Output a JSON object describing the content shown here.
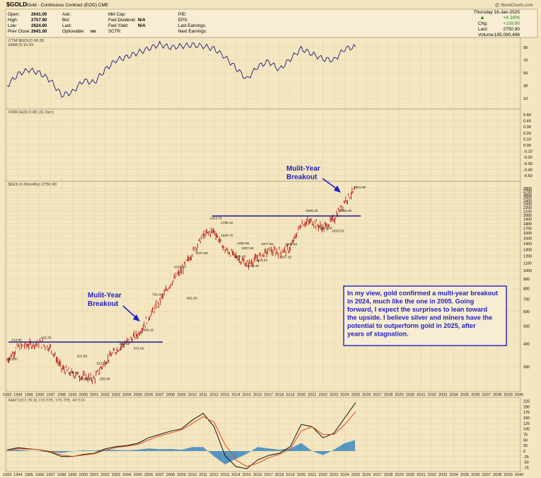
{
  "header": {
    "symbol": "$GOLD",
    "name": "Gold - Continuous Contract (EOD) CME",
    "watermark": "@ StockCharts.com",
    "fields_left": [
      {
        "label": "Open:",
        "value": "2641.00"
      },
      {
        "label": "High:",
        "value": "2757.90"
      },
      {
        "label": "Low:",
        "value": "2624.60"
      },
      {
        "label": "Prev Close:",
        "value": "2641.00"
      }
    ],
    "fields_mid": [
      {
        "label": "Ask:",
        "value": ""
      },
      {
        "label": "Bid:",
        "value": ""
      },
      {
        "label": "Last:",
        "value": ""
      },
      {
        "label": "Optionable:",
        "value": "no"
      }
    ],
    "fields_mid2": [
      {
        "label": "Mkt Cap:",
        "value": ""
      },
      {
        "label": "Fwd Dividend:",
        "value": "N/A"
      },
      {
        "label": "Fwd Yield:",
        "value": "N/A"
      },
      {
        "label": "SCTR:",
        "value": ""
      }
    ],
    "fields_right": [
      {
        "label": "P/E:",
        "value": ""
      },
      {
        "label": "EPS:",
        "value": ""
      },
      {
        "label": "Last Earnings:",
        "value": ""
      },
      {
        "label": "Next Earnings:",
        "value": ""
      }
    ],
    "quote": {
      "date": "Thursday 16-Jan-2025",
      "pct": "+4.16%",
      "chg_label": "Chg:",
      "chg": "+109.90",
      "last_label": "Last:",
      "last": "2750.90",
      "vol_label": "Volume:",
      "vol": "185,090,496"
    }
  },
  "colors": {
    "background": "#f4e6c0",
    "price": "#b00000",
    "lines": "#1a1a7a",
    "annotation": "#1e1ec8",
    "macd_signal": "#e04a1a",
    "histogram": "#4a8fc0"
  },
  "chart_data": [
    {
      "type": "line",
      "panel": "ctm",
      "legend": [
        "CTM-$GOLD 90.80",
        "EMA(3) 91.81"
      ],
      "yticks": [
        90,
        70,
        50,
        30,
        10
      ],
      "x": [
        1993,
        1994,
        1995,
        1996,
        1997,
        1998,
        1999,
        2000,
        2001,
        2002,
        2003,
        2004,
        2005,
        2006,
        2007,
        2008,
        2009,
        2010,
        2011,
        2012,
        2013,
        2014,
        2015,
        2016,
        2017,
        2018,
        2019,
        2020,
        2021,
        2022,
        2023,
        2024,
        2025
      ],
      "values": [
        30,
        48,
        55,
        50,
        38,
        15,
        20,
        38,
        35,
        55,
        70,
        75,
        82,
        88,
        95,
        90,
        92,
        94,
        92,
        88,
        75,
        58,
        40,
        60,
        68,
        55,
        72,
        88,
        80,
        72,
        70,
        88,
        91
      ]
    },
    {
      "type": "line",
      "panel": "force",
      "legend": [
        "FORCE(0) 0.00 (31 Dec)"
      ],
      "yticks": [
        "0.50",
        "0.40",
        "0.30",
        "0.20",
        "0.10",
        "0.00",
        "-0.10",
        "-0.20",
        "-0.30",
        "-0.40",
        "-0.50"
      ],
      "values": []
    },
    {
      "type": "line",
      "panel": "price",
      "title": "$GOLD (Monthly) 2750.90",
      "scale": "log",
      "x": [
        1993,
        1994,
        1995,
        1996,
        1997,
        1998,
        1999,
        2000,
        2001,
        2002,
        2003,
        2004,
        2005,
        2006,
        2007,
        2008,
        2009,
        2010,
        2011,
        2012,
        2013,
        2014,
        2015,
        2016,
        2017,
        2018,
        2019,
        2020,
        2021,
        2022,
        2023,
        2024,
        2025
      ],
      "values": [
        325.8,
        385,
        395,
        405,
        380,
        295,
        275,
        265,
        258,
        320,
        370,
        410,
        450,
        560,
        680,
        850,
        1000,
        1250,
        1550,
        1650,
        1300,
        1200,
        1080,
        1170,
        1280,
        1260,
        1320,
        1800,
        1850,
        1700,
        1900,
        2400,
        2750.9
      ],
      "yticks": [
        2800,
        2700,
        2600,
        2500,
        2400,
        2300,
        2200,
        2100,
        2000,
        1900,
        1800,
        1700,
        1600,
        1500,
        1400,
        1300,
        1200,
        1100,
        1000,
        900,
        800,
        700,
        600,
        500,
        400,
        300
      ],
      "price_labels": [
        {
          "x": 1993.0,
          "y": 325.8,
          "text": "325.80"
        },
        {
          "x": 1993.4,
          "y": 415,
          "text": "414.80"
        },
        {
          "x": 1996.1,
          "y": 425,
          "text": "433.70"
        },
        {
          "x": 1998.6,
          "y": 275,
          "text": "275.80"
        },
        {
          "x": 1999.4,
          "y": 338,
          "text": "337.50"
        },
        {
          "x": 1999.8,
          "y": 255,
          "text": "253.20"
        },
        {
          "x": 2001.2,
          "y": 310,
          "text": "313.50"
        },
        {
          "x": 2001.5,
          "y": 255,
          "text": "255.80"
        },
        {
          "x": 2003.3,
          "y": 395,
          "text": "394.50"
        },
        {
          "x": 2004.6,
          "y": 372,
          "text": "372.00"
        },
        {
          "x": 2005.5,
          "y": 470,
          "text": "489.20"
        },
        {
          "x": 2006.3,
          "y": 730,
          "text": "730.00"
        },
        {
          "x": 2008.3,
          "y": 1034,
          "text": "1033.90"
        },
        {
          "x": 2009.5,
          "y": 700,
          "text": "681.00"
        },
        {
          "x": 2010.3,
          "y": 1227,
          "text": "1227.50"
        },
        {
          "x": 2011.6,
          "y": 1900,
          "text": "1923.70"
        },
        {
          "x": 2012.6,
          "y": 1800,
          "text": "1798.10"
        },
        {
          "x": 2012.6,
          "y": 1530,
          "text": "1526.70"
        },
        {
          "x": 2014.1,
          "y": 1392,
          "text": "1392.60"
        },
        {
          "x": 2014.5,
          "y": 1307,
          "text": "1307.80"
        },
        {
          "x": 2013.8,
          "y": 1180,
          "text": "1181.40"
        },
        {
          "x": 2016.3,
          "y": 1377,
          "text": "1377.50"
        },
        {
          "x": 2015.8,
          "y": 1124,
          "text": "1124.20"
        },
        {
          "x": 2015.0,
          "y": 1045,
          "text": "1045.40"
        },
        {
          "x": 2018.5,
          "y": 1369,
          "text": "1369.40"
        },
        {
          "x": 2018.0,
          "y": 1167,
          "text": "1167.10"
        },
        {
          "x": 2020.4,
          "y": 2089,
          "text": "2089.20"
        },
        {
          "x": 2021.7,
          "y": 1680,
          "text": "1675.90"
        },
        {
          "x": 2023.5,
          "y": 2085,
          "text": "2085.40"
        },
        {
          "x": 2022.8,
          "y": 1623,
          "text": "1623.50"
        },
        {
          "x": 2024.8,
          "y": 2800,
          "text": "2801.80"
        }
      ],
      "annotations": [
        {
          "text": [
            "Mulit-Year",
            "Breakout"
          ],
          "position": "upper-right"
        },
        {
          "text": [
            "Mulit-Year",
            "Breakout"
          ],
          "position": "left-middle"
        }
      ],
      "note": "In my view, gold confirmed a multi-year breakout in 2024, much like the one in 2005. Going forward, I expect the surprises to lean toward the upside. I believe silver and miners have the potential to outperform gold in 2025, after years of stagnation."
    },
    {
      "type": "line",
      "panel": "macd",
      "legend": [
        "MACD(12,26,9) 219.225, 176.725, 42.510"
      ],
      "x": [
        1993,
        1994,
        1995,
        1996,
        1997,
        1998,
        1999,
        2000,
        2001,
        2002,
        2003,
        2004,
        2005,
        2006,
        2007,
        2008,
        2009,
        2010,
        2011,
        2012,
        2013,
        2014,
        2015,
        2016,
        2017,
        2018,
        2019,
        2020,
        2021,
        2022,
        2023,
        2024,
        2025
      ],
      "series": [
        {
          "name": "MACD",
          "values": [
            5,
            15,
            10,
            5,
            -5,
            -25,
            -25,
            -15,
            -10,
            10,
            20,
            25,
            35,
            60,
            75,
            90,
            100,
            140,
            170,
            110,
            -20,
            -70,
            -80,
            -40,
            -20,
            -10,
            20,
            120,
            110,
            60,
            80,
            150,
            219
          ]
        },
        {
          "name": "Signal",
          "values": [
            3,
            10,
            9,
            6,
            -2,
            -18,
            -24,
            -18,
            -12,
            4,
            16,
            22,
            30,
            50,
            68,
            82,
            95,
            125,
            155,
            130,
            30,
            -40,
            -70,
            -55,
            -30,
            -15,
            10,
            90,
            110,
            75,
            75,
            120,
            177
          ]
        }
      ],
      "yticks": [
        225,
        200,
        175,
        150,
        125,
        100,
        75,
        50,
        25,
        0,
        -25,
        -50,
        -75
      ],
      "ylim": [
        -80,
        230
      ]
    }
  ],
  "x_axis_labels": [
    "1993",
    "1994",
    "1995",
    "1996",
    "1997",
    "1998",
    "1999",
    "2000",
    "2001",
    "2002",
    "2003",
    "2004",
    "2005",
    "2006",
    "2007",
    "2008",
    "2009",
    "2010",
    "2011",
    "2012",
    "2013",
    "2014",
    "2015",
    "2016",
    "2017",
    "2018",
    "2019",
    "2020",
    "2021",
    "2022",
    "2023",
    "2024",
    "2025",
    "2026",
    "2027",
    "2028",
    "2029",
    "2030",
    "2031",
    "2032",
    "2033",
    "2034",
    "2035",
    "2036",
    "2037",
    "2038",
    "2039",
    "2040"
  ]
}
